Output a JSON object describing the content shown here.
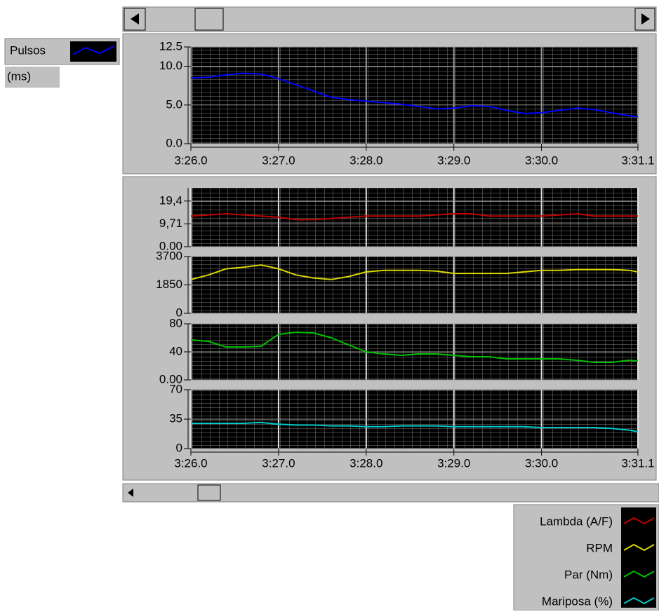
{
  "chart_data": [
    {
      "type": "line",
      "y_label": "(ms)",
      "x": [
        206,
        206.2,
        206.4,
        206.6,
        206.8,
        207,
        207.2,
        207.4,
        207.6,
        207.8,
        208,
        208.2,
        208.4,
        208.6,
        208.8,
        209,
        209.2,
        209.4,
        209.6,
        209.8,
        210,
        210.2,
        210.4,
        210.6,
        210.8,
        211,
        211.1
      ],
      "xlim": [
        206,
        211.1
      ],
      "xticks": [
        {
          "value": 206,
          "label": "3:26.0"
        },
        {
          "value": 207,
          "label": "3:27.0"
        },
        {
          "value": 208,
          "label": "3:28.0"
        },
        {
          "value": 209,
          "label": "3:29.0"
        },
        {
          "value": 210,
          "label": "3:30.0"
        },
        {
          "value": 211.1,
          "label": "3:31.1"
        }
      ],
      "panels": [
        {
          "ylim": [
            0,
            12.5
          ],
          "yticks": [
            {
              "value": 0,
              "label": "0.0"
            },
            {
              "value": 5,
              "label": "5.0"
            },
            {
              "value": 10,
              "label": "10.0"
            },
            12.5
          ],
          "series": [
            {
              "name": "Pulsos",
              "color": "#0000ff",
              "values": [
                8.5,
                8.6,
                8.9,
                9.1,
                9.0,
                8.4,
                7.6,
                6.8,
                6.0,
                5.7,
                5.5,
                5.3,
                5.1,
                4.8,
                4.5,
                4.6,
                4.9,
                4.8,
                4.3,
                3.9,
                4.0,
                4.3,
                4.6,
                4.4,
                4.0,
                3.6,
                3.5
              ]
            }
          ]
        }
      ]
    },
    {
      "type": "line",
      "x": [
        206,
        206.2,
        206.4,
        206.6,
        206.8,
        207,
        207.2,
        207.4,
        207.6,
        207.8,
        208,
        208.2,
        208.4,
        208.6,
        208.8,
        209,
        209.2,
        209.4,
        209.6,
        209.8,
        210,
        210.2,
        210.4,
        210.6,
        210.8,
        211,
        211.1
      ],
      "xlim": [
        206,
        211.1
      ],
      "xticks": [
        {
          "value": 206,
          "label": "3:26.0"
        },
        {
          "value": 207,
          "label": "3:27.0"
        },
        {
          "value": 208,
          "label": "3:28.0"
        },
        {
          "value": 209,
          "label": "3:29.0"
        },
        {
          "value": 210,
          "label": "3:30.0"
        },
        {
          "value": 211.1,
          "label": "3:31.1"
        }
      ],
      "panels": [
        {
          "ylim": [
            0,
            25
          ],
          "yticks": [
            {
              "value": 0,
              "label": "0.00"
            },
            {
              "value": 9.71,
              "label": "9,71"
            },
            {
              "value": 19.4,
              "label": "19,4"
            }
          ],
          "series": [
            {
              "name": "Lambda (A/F)",
              "color": "#c00000",
              "values": [
                13,
                13.5,
                14,
                13.5,
                13,
                12.5,
                11.5,
                11.5,
                12,
                12.5,
                13,
                13,
                13,
                13,
                13.5,
                14,
                14,
                13,
                13,
                13,
                13,
                13.5,
                14,
                13,
                13,
                13,
                13
              ]
            }
          ]
        },
        {
          "ylim": [
            0,
            3700
          ],
          "yticks": [
            0,
            1850,
            3700
          ],
          "series": [
            {
              "name": "RPM",
              "color": "#d8d800",
              "values": [
                2200,
                2500,
                2900,
                3000,
                3150,
                2900,
                2500,
                2300,
                2200,
                2400,
                2700,
                2800,
                2800,
                2800,
                2750,
                2600,
                2600,
                2600,
                2600,
                2700,
                2800,
                2800,
                2850,
                2850,
                2850,
                2800,
                2700
              ]
            }
          ]
        },
        {
          "ylim": [
            0,
            80
          ],
          "yticks": [
            {
              "value": 0,
              "label": "0.00"
            },
            40,
            80
          ],
          "series": [
            {
              "name": "Par (Nm)",
              "color": "#00c000",
              "values": [
                57,
                55,
                47,
                47,
                48,
                65,
                68,
                67,
                60,
                50,
                40,
                37,
                35,
                37,
                37,
                35,
                33,
                33,
                30,
                30,
                30,
                30,
                28,
                25,
                25,
                28,
                27
              ]
            }
          ]
        },
        {
          "ylim": [
            0,
            70
          ],
          "yticks": [
            0,
            35,
            70
          ],
          "series": [
            {
              "name": "Mariposa (%)",
              "color": "#00c8c8",
              "values": [
                30,
                30,
                30,
                30,
                31,
                29,
                28,
                28,
                27,
                27,
                26,
                26,
                27,
                27,
                27,
                26,
                26,
                26,
                26,
                26,
                25,
                25,
                25,
                25,
                24,
                22,
                20
              ]
            }
          ]
        }
      ]
    }
  ]
}
